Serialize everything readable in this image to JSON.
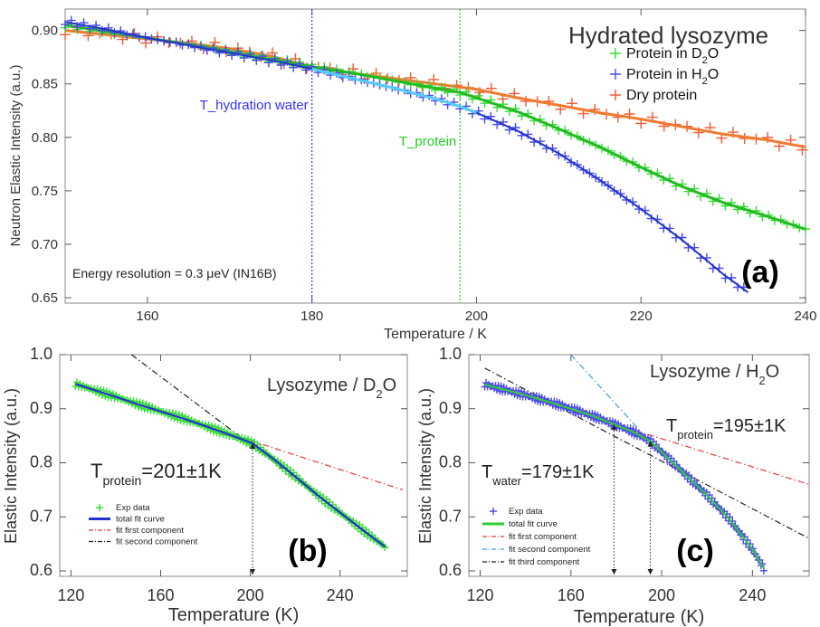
{
  "colors": {
    "green": "#33dd33",
    "blue": "#4a4ae8",
    "red": "#f25a35",
    "orange": "#f07a30",
    "lightblue": "#55ccff",
    "darkgreen_line": "#22bb22",
    "fitblue": "#2233cc",
    "fitgreen": "#33cc33",
    "vline_blue": "#3333ff",
    "vline_green": "#22cc22",
    "dashdot_red": "#e83a3a",
    "dashdot_black": "#222222",
    "dashdot_blue": "#4499ee",
    "panel_label_bg": "#ffffff"
  },
  "chart_data": [
    {
      "id": "a",
      "type": "scatter",
      "title": "Hydrated lysozyme",
      "xlabel": "Temperature / K",
      "ylabel": "Neutron Elastic Intensity (a.u.)",
      "xlim": [
        150,
        240
      ],
      "ylim": [
        0.645,
        0.92
      ],
      "xticks": [
        160,
        180,
        200,
        220,
        240
      ],
      "yticks": [
        0.65,
        0.7,
        0.75,
        0.8,
        0.85,
        0.9
      ],
      "ytick_labels": [
        "0.65",
        "0.70",
        "0.75",
        "0.80",
        "0.85",
        "0.90"
      ],
      "panel_label": "(a)",
      "annotation": "Energy resolution = 0.3 μeV (IN16B)",
      "vlines": [
        {
          "x": 180,
          "label": "T_hydration water",
          "color_key": "vline_blue"
        },
        {
          "x": 198,
          "label": "T_protein",
          "color_key": "vline_green"
        }
      ],
      "legend_position": "top-right",
      "series": [
        {
          "name_main": "Protein in D",
          "name_sub": "2",
          "name_tail": "O",
          "color_key": "green",
          "points": [
            [
              150,
              0.905
            ],
            [
              155,
              0.899
            ],
            [
              160,
              0.893
            ],
            [
              165,
              0.887
            ],
            [
              170,
              0.88
            ],
            [
              175,
              0.873
            ],
            [
              180,
              0.866
            ],
            [
              185,
              0.86
            ],
            [
              190,
              0.853
            ],
            [
              195,
              0.846
            ],
            [
              198,
              0.842
            ],
            [
              200,
              0.837
            ],
            [
              205,
              0.824
            ],
            [
              210,
              0.808
            ],
            [
              215,
              0.791
            ],
            [
              220,
              0.772
            ],
            [
              225,
              0.754
            ],
            [
              230,
              0.739
            ],
            [
              235,
              0.727
            ],
            [
              240,
              0.714
            ]
          ]
        },
        {
          "name_main": "Protein in H",
          "name_sub": "2",
          "name_tail": "O",
          "color_key": "blue",
          "points": [
            [
              150,
              0.908
            ],
            [
              155,
              0.901
            ],
            [
              160,
              0.893
            ],
            [
              165,
              0.886
            ],
            [
              170,
              0.879
            ],
            [
              175,
              0.872
            ],
            [
              180,
              0.864
            ],
            [
              185,
              0.855
            ],
            [
              190,
              0.846
            ],
            [
              195,
              0.836
            ],
            [
              198,
              0.829
            ],
            [
              200,
              0.823
            ],
            [
              205,
              0.806
            ],
            [
              210,
              0.785
            ],
            [
              215,
              0.76
            ],
            [
              220,
              0.733
            ],
            [
              225,
              0.704
            ],
            [
              230,
              0.672
            ],
            [
              233,
              0.655
            ]
          ]
        },
        {
          "name_main": "Dry protein",
          "name_sub": "",
          "name_tail": "",
          "color_key": "red",
          "points": [
            [
              150,
              0.9
            ],
            [
              155,
              0.896
            ],
            [
              160,
              0.892
            ],
            [
              165,
              0.888
            ],
            [
              170,
              0.883
            ],
            [
              175,
              0.876
            ],
            [
              180,
              0.866
            ],
            [
              185,
              0.86
            ],
            [
              190,
              0.855
            ],
            [
              195,
              0.85
            ],
            [
              200,
              0.845
            ],
            [
              205,
              0.837
            ],
            [
              210,
              0.83
            ],
            [
              215,
              0.823
            ],
            [
              220,
              0.817
            ],
            [
              225,
              0.81
            ],
            [
              230,
              0.803
            ],
            [
              235,
              0.798
            ],
            [
              240,
              0.791
            ]
          ]
        }
      ]
    },
    {
      "id": "b",
      "type": "scatter",
      "title_main": "Lysozyme / D",
      "title_sub": "2",
      "title_tail": "O",
      "xlabel": "Temperature (K)",
      "ylabel": "Elastic Intensity (a.u.)",
      "xlim": [
        115,
        270
      ],
      "ylim": [
        0.59,
        1.0
      ],
      "xticks": [
        120,
        160,
        200,
        240
      ],
      "yticks": [
        0.6,
        0.7,
        0.8,
        0.9,
        1.0
      ],
      "ytick_labels": [
        "0.6",
        "0.7",
        "0.8",
        "0.9",
        "1.0"
      ],
      "panel_label": "(b)",
      "transition_main": "T",
      "transition_sub": "protein",
      "transition_tail": "=201±1K",
      "transition_x": 201,
      "legend": [
        "Exp data",
        "total fit curve",
        "fit first component",
        "fit second component"
      ],
      "data": [
        [
          122,
          0.946
        ],
        [
          130,
          0.935
        ],
        [
          140,
          0.922
        ],
        [
          150,
          0.908
        ],
        [
          160,
          0.895
        ],
        [
          170,
          0.882
        ],
        [
          180,
          0.868
        ],
        [
          190,
          0.853
        ],
        [
          201,
          0.836
        ],
        [
          210,
          0.808
        ],
        [
          220,
          0.775
        ],
        [
          230,
          0.74
        ],
        [
          240,
          0.708
        ],
        [
          250,
          0.676
        ],
        [
          260,
          0.645
        ]
      ],
      "fit_first": [
        [
          122,
          0.946
        ],
        [
          268,
          0.75
        ]
      ],
      "fit_second": [
        [
          147,
          1.0
        ],
        [
          262,
          0.64
        ]
      ]
    },
    {
      "id": "c",
      "type": "scatter",
      "title_main": "Lysozyme / H",
      "title_sub": "2",
      "title_tail": "O",
      "xlabel": "Temperature (K)",
      "ylabel": "Elastic Intensity (a.u.)",
      "xlim": [
        115,
        265
      ],
      "ylim": [
        0.59,
        1.0
      ],
      "xticks": [
        120,
        160,
        200,
        240
      ],
      "yticks": [
        0.6,
        0.7,
        0.8,
        0.9,
        1.0
      ],
      "ytick_labels": [
        "0.6",
        "0.7",
        "0.8",
        "0.9",
        "1.0"
      ],
      "panel_label": "(c)",
      "transition_water_main": "T",
      "transition_water_sub": "water",
      "transition_water_tail": "=179±1K",
      "transition_water_x": 179,
      "transition_protein_main": "T",
      "transition_protein_sub": "protein",
      "transition_protein_tail": "=195±1K",
      "transition_protein_x": 195,
      "legend": [
        "Exp data",
        "total fit curve",
        "fit first component",
        "fit second component",
        "fit third component"
      ],
      "data": [
        [
          122,
          0.945
        ],
        [
          130,
          0.936
        ],
        [
          140,
          0.925
        ],
        [
          150,
          0.913
        ],
        [
          160,
          0.9
        ],
        [
          170,
          0.886
        ],
        [
          179,
          0.871
        ],
        [
          187,
          0.858
        ],
        [
          195,
          0.84
        ],
        [
          200,
          0.82
        ],
        [
          210,
          0.78
        ],
        [
          220,
          0.74
        ],
        [
          230,
          0.695
        ],
        [
          240,
          0.64
        ],
        [
          245,
          0.605
        ]
      ],
      "fit_first": [
        [
          122,
          0.946
        ],
        [
          265,
          0.76
        ]
      ],
      "fit_second": [
        [
          160,
          1.0
        ],
        [
          200,
          0.815
        ]
      ],
      "fit_third": [
        [
          122,
          0.975
        ],
        [
          265,
          0.66
        ]
      ]
    }
  ]
}
